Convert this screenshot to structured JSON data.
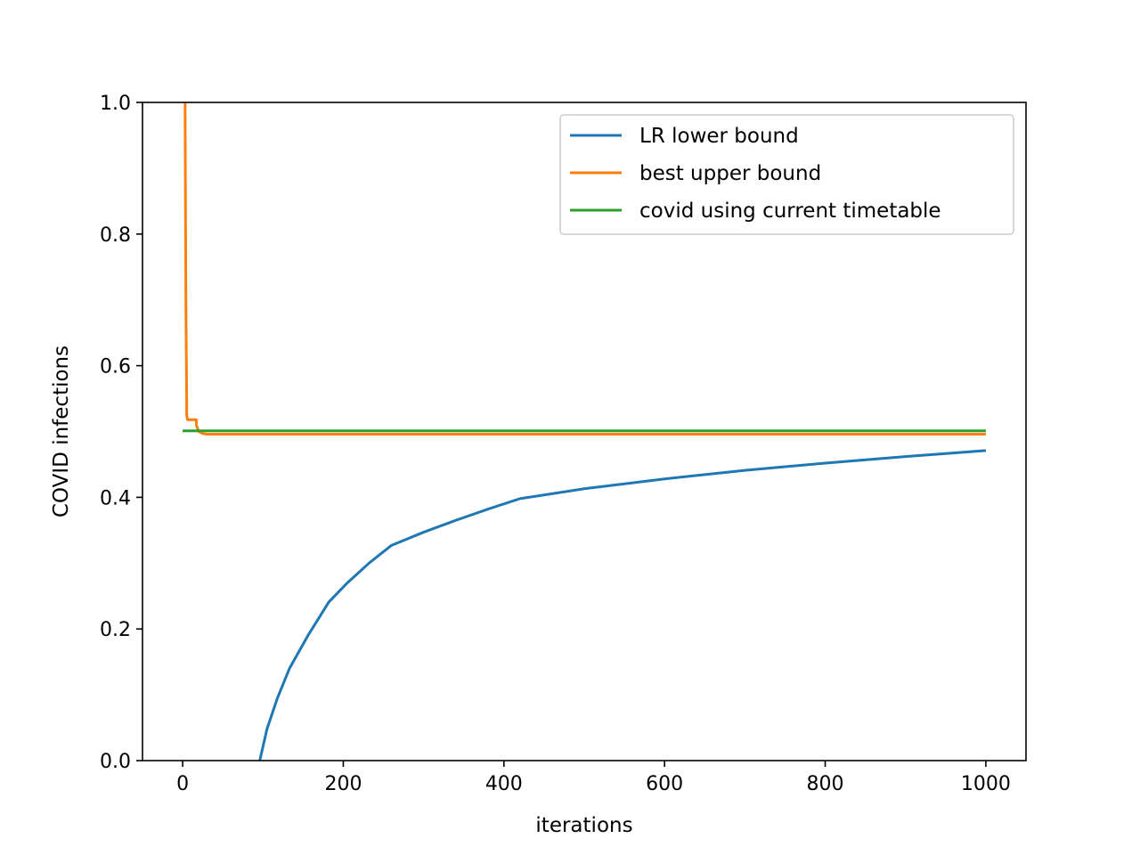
{
  "chart_data": {
    "type": "line",
    "title": "",
    "xlabel": "iterations",
    "ylabel": "COVID infections",
    "xlim": [
      -50,
      1050
    ],
    "ylim": [
      0,
      1.0
    ],
    "xticks": [
      0,
      200,
      400,
      600,
      800,
      1000
    ],
    "xtick_labels": [
      "0",
      "200",
      "400",
      "600",
      "800",
      "1000"
    ],
    "yticks": [
      0.0,
      0.2,
      0.4,
      0.6,
      0.8,
      1.0
    ],
    "ytick_labels": [
      "0.0",
      "0.2",
      "0.4",
      "0.6",
      "0.8",
      "1.0"
    ],
    "grid": false,
    "legend_position": "top-right",
    "series": [
      {
        "name": "LR lower bound",
        "color": "#1f77b4",
        "x": [
          96,
          105,
          118,
          133,
          156,
          182,
          205,
          232,
          260,
          300,
          340,
          380,
          420,
          500,
          600,
          700,
          800,
          900,
          1000
        ],
        "y": [
          0.0,
          0.048,
          0.095,
          0.14,
          0.19,
          0.241,
          0.27,
          0.3,
          0.327,
          0.347,
          0.365,
          0.382,
          0.398,
          0.413,
          0.428,
          0.441,
          0.452,
          0.462,
          0.471
        ]
      },
      {
        "name": "best upper bound",
        "color": "#ff7f0e",
        "x": [
          2,
          3,
          4,
          5,
          5,
          6,
          17,
          17,
          20,
          25,
          30,
          40,
          100,
          200,
          400,
          600,
          800,
          1000
        ],
        "y": [
          1.05,
          1.0,
          0.7,
          0.55,
          0.525,
          0.518,
          0.518,
          0.51,
          0.5,
          0.497,
          0.496,
          0.496,
          0.496,
          0.496,
          0.496,
          0.496,
          0.496,
          0.496
        ]
      },
      {
        "name": "covid using current timetable",
        "color": "#2ca02c",
        "x": [
          0,
          1000
        ],
        "y": [
          0.501,
          0.501
        ]
      }
    ]
  }
}
